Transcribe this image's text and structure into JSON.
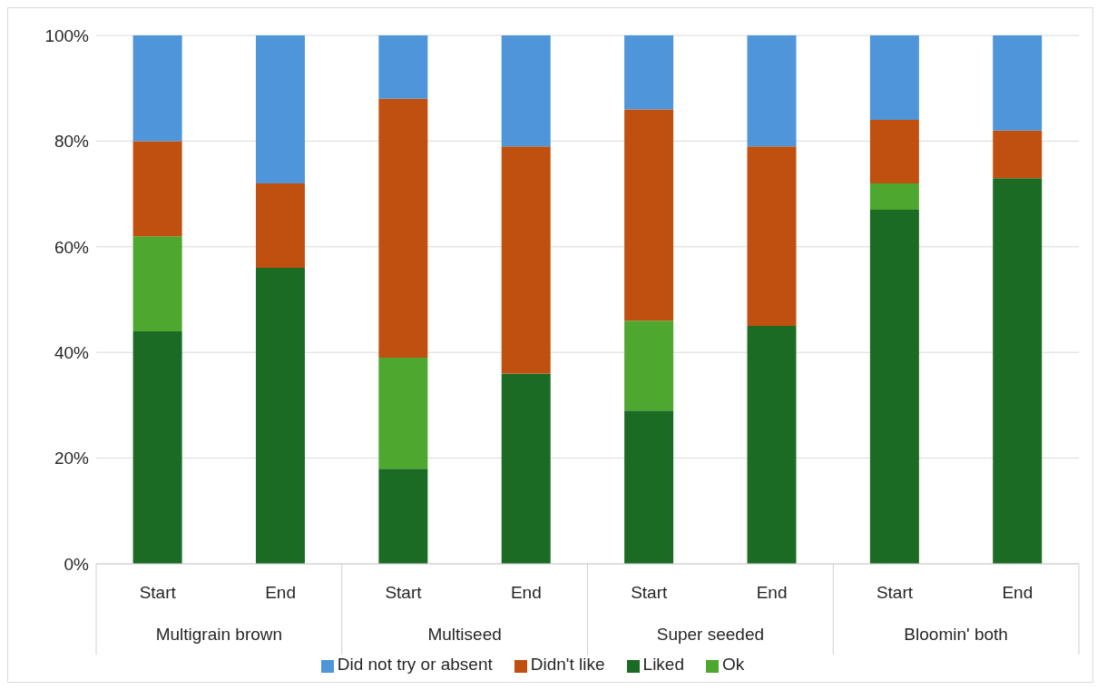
{
  "chart_data": {
    "type": "bar",
    "stacked": true,
    "categories": [
      "Start",
      "End",
      "Start",
      "End",
      "Start",
      "End",
      "Start",
      "End"
    ],
    "annotations": [
      "Multigrain brown",
      "Multiseed",
      "Super seeded",
      "Bloomin' both"
    ],
    "series": [
      {
        "name": "Liked",
        "color": "#1b6b25",
        "values": [
          44,
          56,
          18,
          36,
          29,
          45,
          67,
          73
        ]
      },
      {
        "name": "Ok",
        "color": "#4ea72e",
        "values": [
          18,
          0,
          21,
          0,
          17,
          0,
          5,
          0
        ]
      },
      {
        "name": "Didn't like",
        "color": "#c0500f",
        "values": [
          18,
          16,
          49,
          43,
          40,
          34,
          12,
          9
        ]
      },
      {
        "name": "Did not try or absent",
        "color": "#4e95d9",
        "values": [
          20,
          28,
          12,
          21,
          14,
          21,
          16,
          18
        ]
      }
    ],
    "ylim": [
      0,
      100
    ],
    "yticks": [
      {
        "value": 0,
        "label": "0%"
      },
      {
        "value": 20,
        "label": "20%"
      },
      {
        "value": 40,
        "label": "40%"
      },
      {
        "value": 60,
        "label": "60%"
      },
      {
        "value": 80,
        "label": "80%"
      },
      {
        "value": 100,
        "label": "100%"
      }
    ],
    "grid": "y",
    "legend": "bottom"
  }
}
